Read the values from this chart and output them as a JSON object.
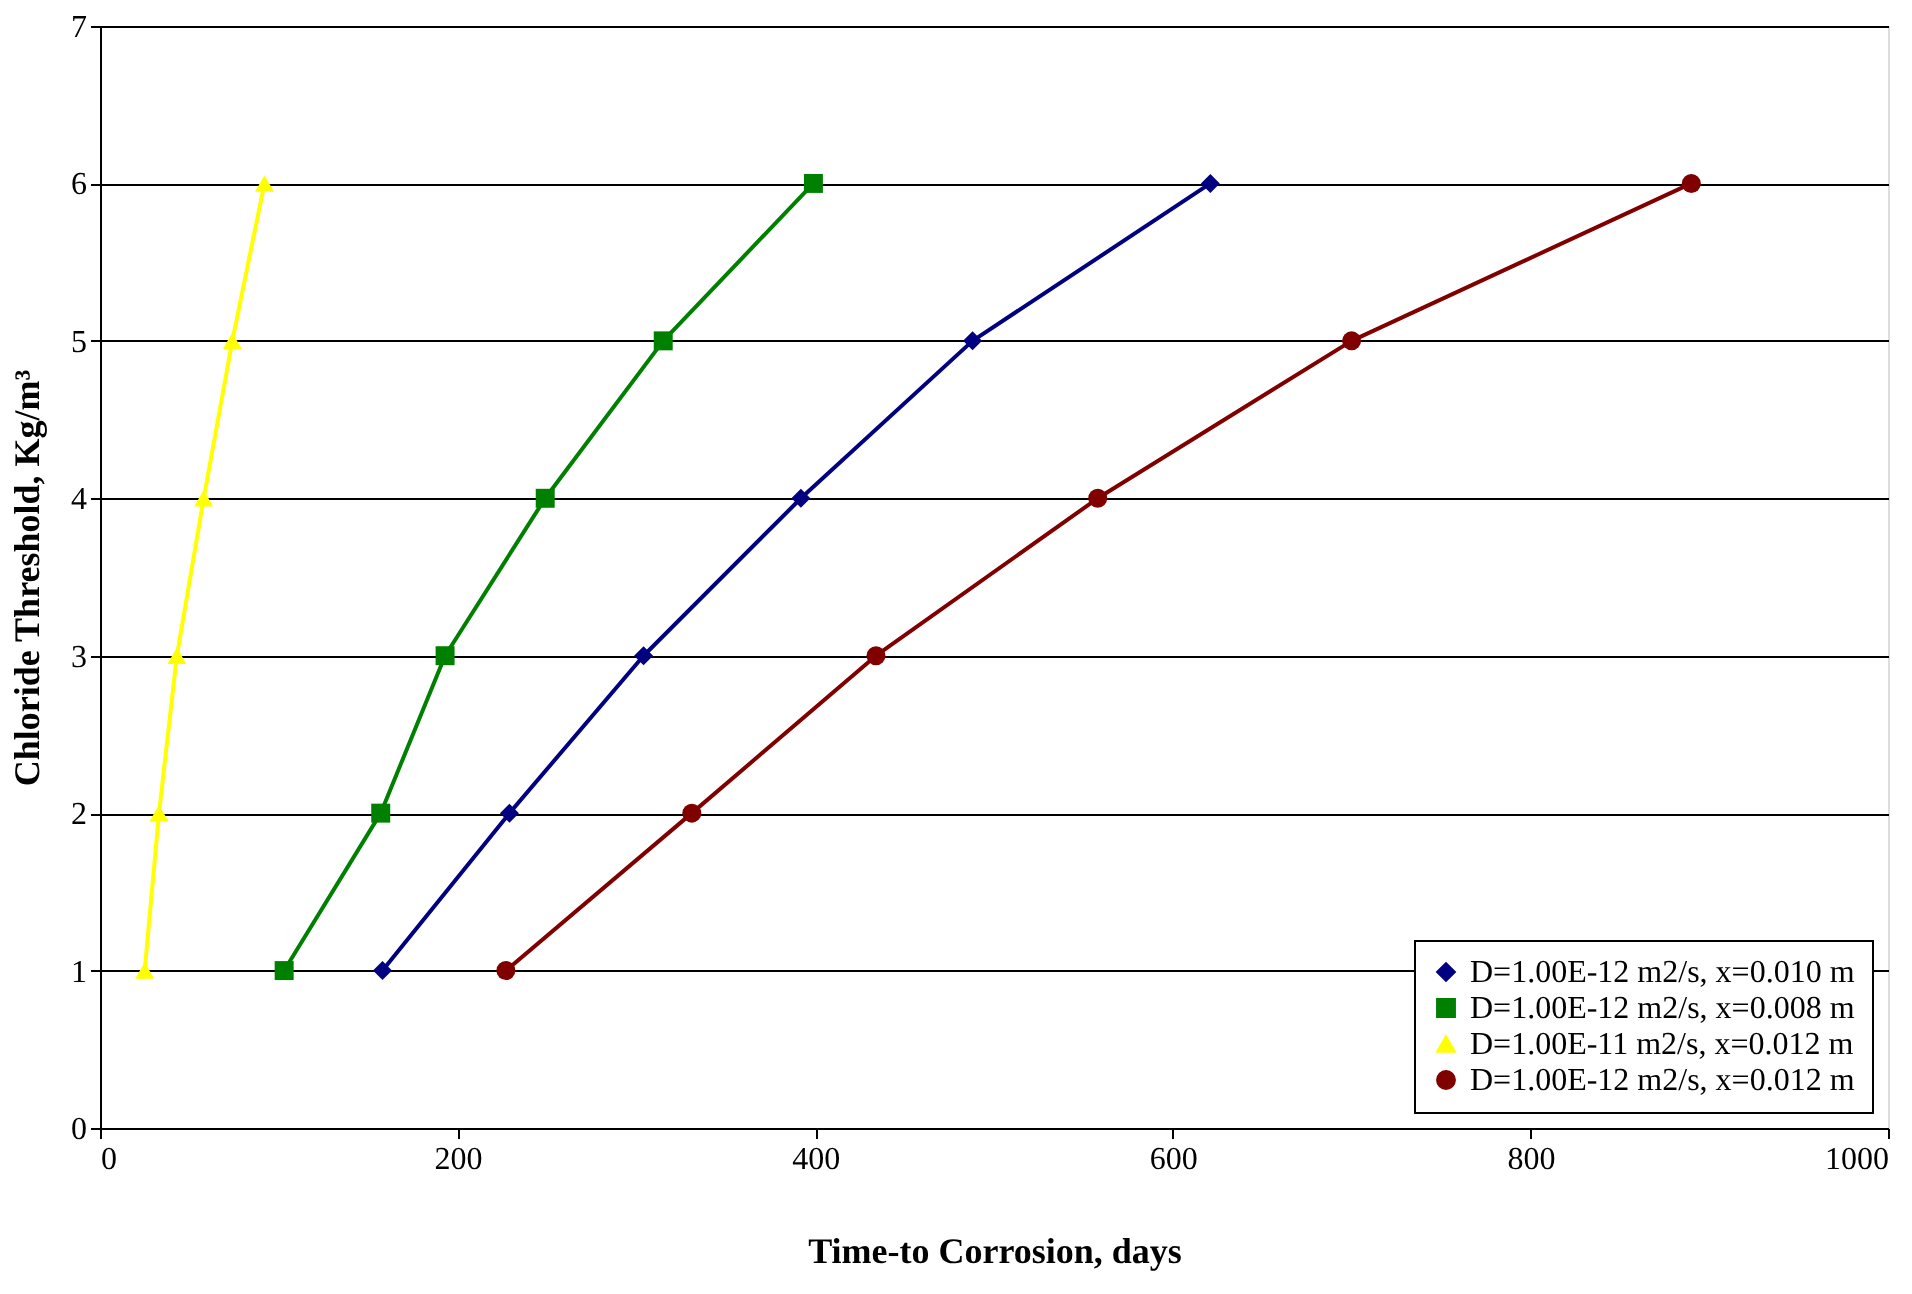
{
  "chart_data": {
    "type": "line",
    "xlabel": "Time-to Corrosion, days",
    "ylabel": "Chloride Threshold, Kg/m³",
    "xlim": [
      0,
      1000
    ],
    "xticks": [
      0,
      200,
      400,
      600,
      800,
      1000
    ],
    "ylim": [
      0,
      7
    ],
    "yticks": [
      0,
      1,
      2,
      3,
      4,
      5,
      6,
      7
    ],
    "grid": "y",
    "legend": "bottom right",
    "series": [
      {
        "name": "D=1.00E-12 m2/s, x=0.010 m",
        "color": "#000080",
        "marker": "diamond",
        "x": [
          158,
          229,
          304,
          392,
          488,
          621
        ],
        "values": [
          1,
          2,
          3,
          4,
          5,
          6
        ]
      },
      {
        "name": "D=1.00E-12 m2/s, x=0.008 m",
        "color": "#008000",
        "marker": "square",
        "x": [
          103,
          157,
          193,
          249,
          315,
          399
        ],
        "values": [
          1,
          2,
          3,
          4,
          5,
          6
        ]
      },
      {
        "name": "D=1.00E-11 m2/s, x=0.012 m",
        "color": "#ffff00",
        "marker": "triangle",
        "x": [
          25,
          33,
          43,
          58,
          74,
          92
        ],
        "values": [
          1,
          2,
          3,
          4,
          5,
          6
        ]
      },
      {
        "name": "D=1.00E-12 m2/s, x=0.012 m",
        "color": "#800000",
        "marker": "circle",
        "x": [
          227,
          331,
          434,
          558,
          700,
          890
        ],
        "values": [
          1,
          2,
          3,
          4,
          5,
          6
        ]
      }
    ]
  }
}
